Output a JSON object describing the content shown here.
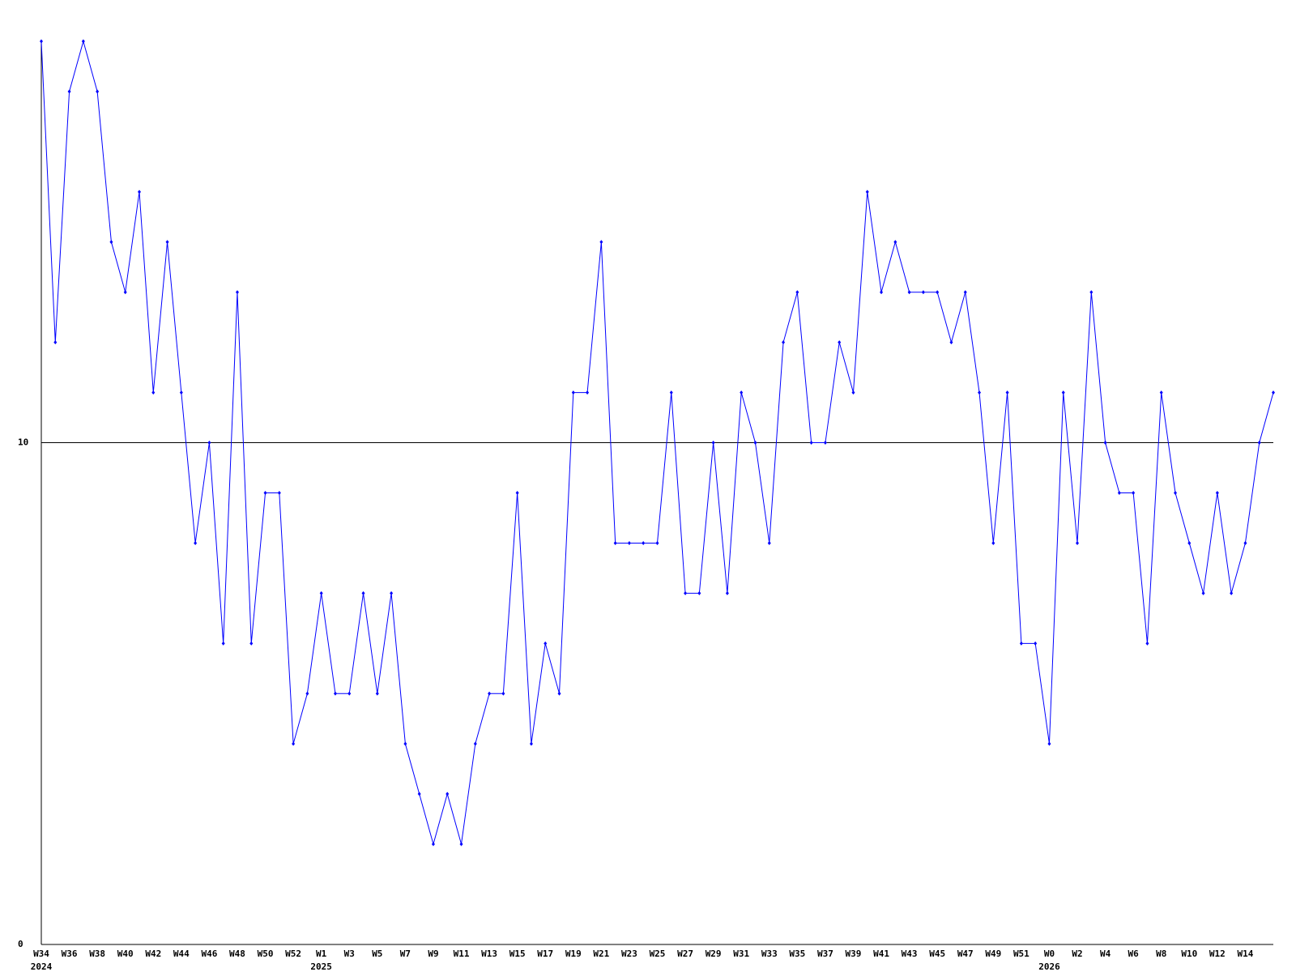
{
  "chart_data": {
    "type": "line",
    "categories": [
      "W34",
      null,
      "W36",
      null,
      "W38",
      null,
      "W40",
      null,
      "W42",
      null,
      "W44",
      null,
      "W46",
      null,
      "W48",
      null,
      "W50",
      null,
      "W52",
      null,
      "W1",
      null,
      "W3",
      null,
      "W5",
      null,
      "W7",
      null,
      "W9",
      null,
      "W11",
      null,
      "W13",
      null,
      "W15",
      null,
      "W17",
      null,
      "W19",
      null,
      "W21",
      null,
      "W23",
      null,
      "W25",
      null,
      "W27",
      null,
      "W29",
      null,
      "W31",
      null,
      "W33",
      null,
      "W35",
      null,
      "W37",
      null,
      "W39",
      null,
      "W41",
      null,
      "W43",
      null,
      "W45",
      null,
      "W47",
      null,
      "W49",
      null,
      "W51",
      null,
      "W0",
      null,
      "W2",
      null,
      "W4",
      null,
      "W6",
      null,
      "W8",
      null,
      "W10",
      null,
      "W12",
      null,
      "W14",
      null,
      null
    ],
    "year_labels": [
      {
        "text": "2024",
        "category": "W34"
      },
      {
        "text": "2025",
        "category": "W1"
      },
      {
        "text": "2026",
        "category": "W0"
      }
    ],
    "series": [
      {
        "color": "#0000ff",
        "values": [
          18,
          12,
          17,
          18,
          17,
          14,
          13,
          15,
          11,
          14,
          11,
          8,
          10,
          6,
          13,
          6,
          9,
          9,
          4,
          5,
          7,
          5,
          5,
          7,
          5,
          7,
          4,
          3,
          2,
          3,
          2,
          4,
          5,
          5,
          9,
          4,
          6,
          5,
          11,
          11,
          14,
          8,
          8,
          8,
          8,
          11,
          7,
          7,
          10,
          7,
          11,
          10,
          8,
          12,
          13,
          10,
          10,
          12,
          11,
          15,
          13,
          14,
          13,
          13,
          13,
          12,
          13,
          11,
          8,
          11,
          6,
          6,
          4,
          11,
          8,
          13,
          10,
          9,
          9,
          6,
          11,
          9,
          8,
          7,
          9,
          7,
          8,
          10,
          11
        ]
      }
    ],
    "ylim": [
      0,
      18
    ],
    "yticks": [
      0,
      10
    ],
    "grid": true
  }
}
